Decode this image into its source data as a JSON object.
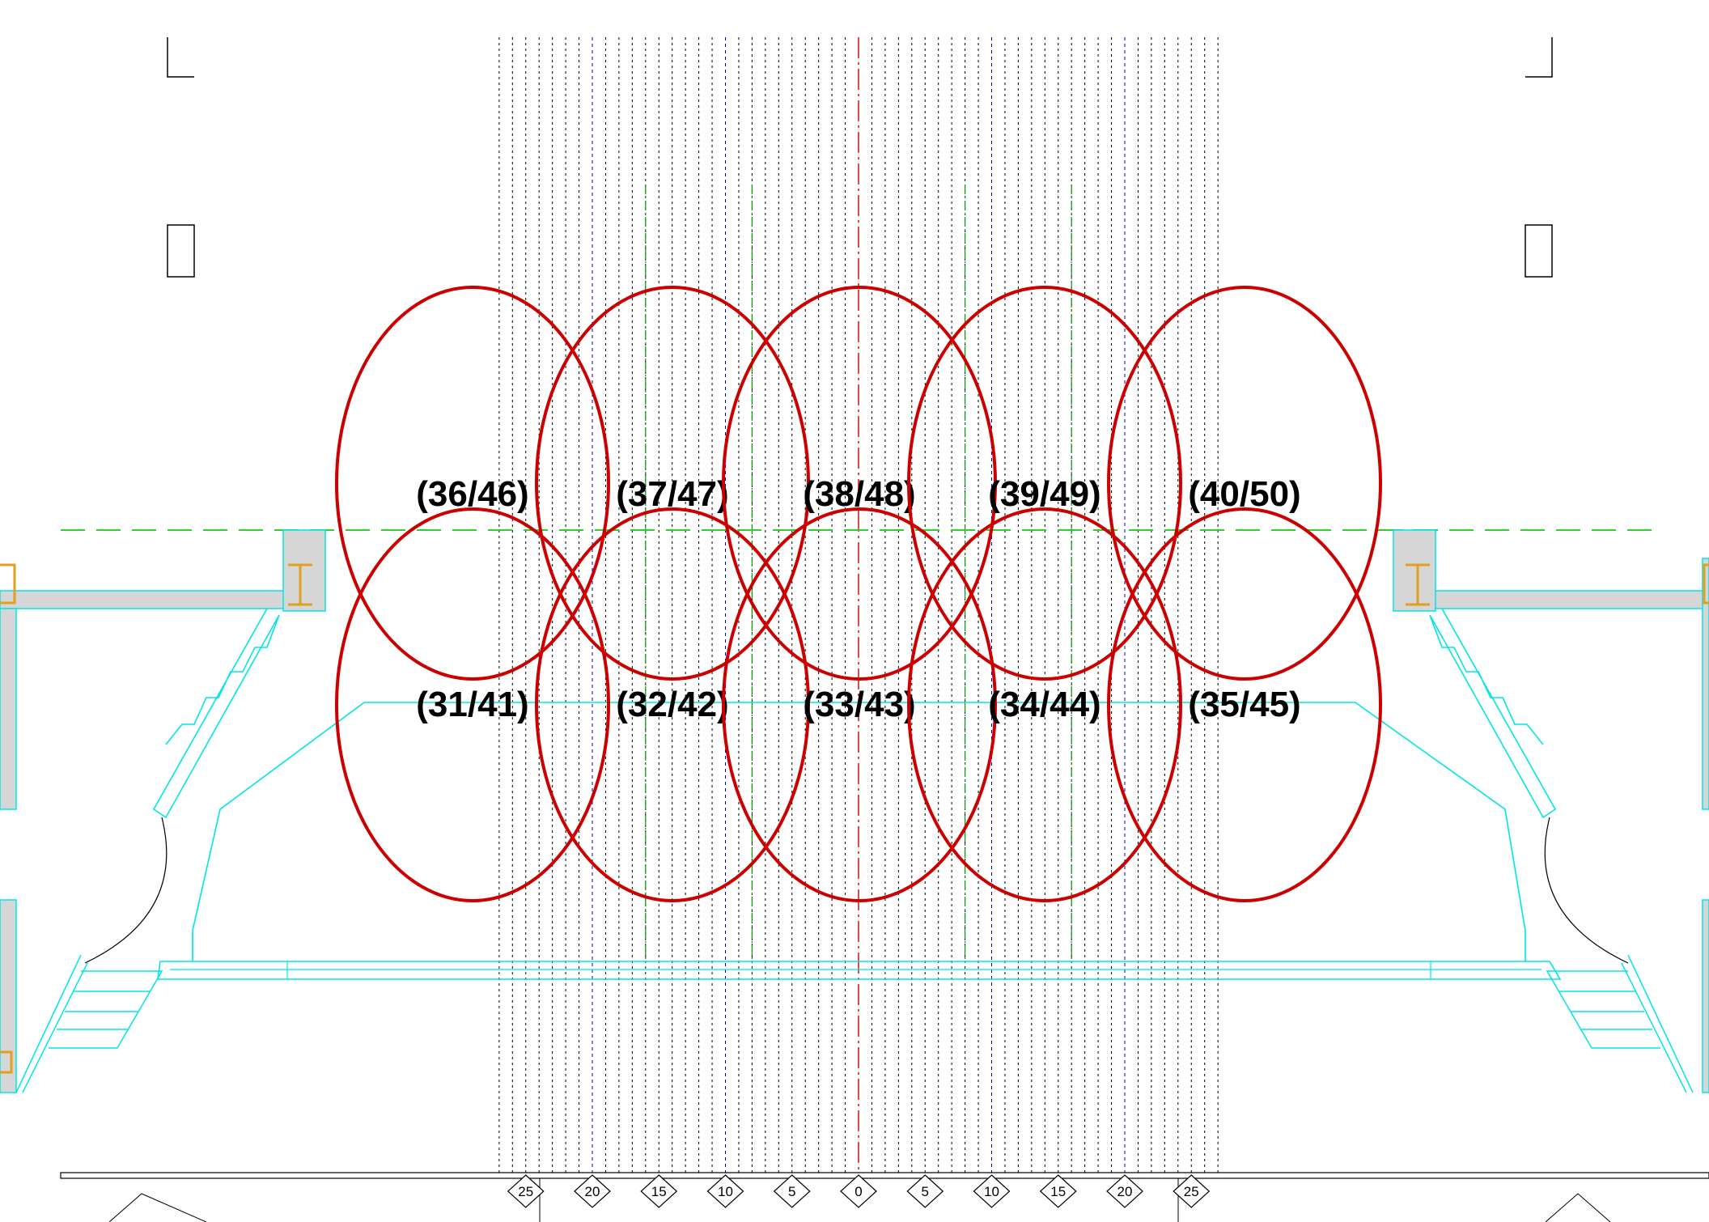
{
  "colors": {
    "zone_ellipse": "#cc0000",
    "batten_line": "#000000",
    "blue_line": "#0000cc",
    "green_line": "#00a000",
    "center_line": "#cc0000",
    "cyan_outline": "#00e5e5",
    "green_dash": "#33cc33",
    "steel_beam": "#e0a020",
    "concrete": "#cfcfcf",
    "wall": "#000000"
  },
  "zones": [
    {
      "label": "(36/46)"
    },
    {
      "label": "(37/47)"
    },
    {
      "label": "(38/48)"
    },
    {
      "label": "(39/49)"
    },
    {
      "label": "(40/50)"
    },
    {
      "label": "(31/41)"
    },
    {
      "label": "(32/42)"
    },
    {
      "label": "(33/43)"
    },
    {
      "label": "(34/44)"
    },
    {
      "label": "(35/45)"
    }
  ],
  "axis_markers": [
    {
      "label": "25"
    },
    {
      "label": "20"
    },
    {
      "label": "15"
    },
    {
      "label": "10"
    },
    {
      "label": "5"
    },
    {
      "label": "0"
    },
    {
      "label": "5"
    },
    {
      "label": "10"
    },
    {
      "label": "15"
    },
    {
      "label": "20"
    },
    {
      "label": "25"
    }
  ]
}
